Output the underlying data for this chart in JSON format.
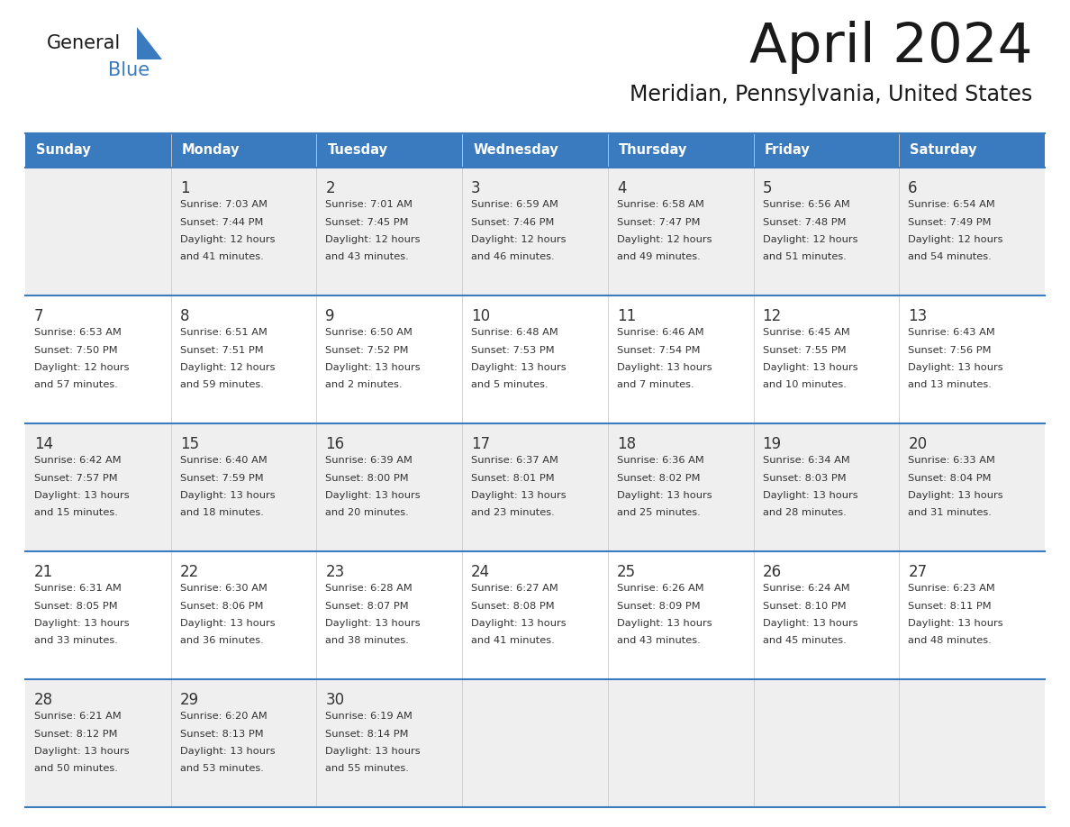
{
  "title": "April 2024",
  "subtitle": "Meridian, Pennsylvania, United States",
  "header_bg": "#3a7abf",
  "header_text": "#ffffff",
  "row_bg_odd": "#efefef",
  "row_bg_even": "#ffffff",
  "separator_color": "#3a7abf",
  "text_color": "#333333",
  "days_of_week": [
    "Sunday",
    "Monday",
    "Tuesday",
    "Wednesday",
    "Thursday",
    "Friday",
    "Saturday"
  ],
  "weeks": [
    [
      {
        "day": "",
        "info": ""
      },
      {
        "day": "1",
        "info": "Sunrise: 7:03 AM\nSunset: 7:44 PM\nDaylight: 12 hours\nand 41 minutes."
      },
      {
        "day": "2",
        "info": "Sunrise: 7:01 AM\nSunset: 7:45 PM\nDaylight: 12 hours\nand 43 minutes."
      },
      {
        "day": "3",
        "info": "Sunrise: 6:59 AM\nSunset: 7:46 PM\nDaylight: 12 hours\nand 46 minutes."
      },
      {
        "day": "4",
        "info": "Sunrise: 6:58 AM\nSunset: 7:47 PM\nDaylight: 12 hours\nand 49 minutes."
      },
      {
        "day": "5",
        "info": "Sunrise: 6:56 AM\nSunset: 7:48 PM\nDaylight: 12 hours\nand 51 minutes."
      },
      {
        "day": "6",
        "info": "Sunrise: 6:54 AM\nSunset: 7:49 PM\nDaylight: 12 hours\nand 54 minutes."
      }
    ],
    [
      {
        "day": "7",
        "info": "Sunrise: 6:53 AM\nSunset: 7:50 PM\nDaylight: 12 hours\nand 57 minutes."
      },
      {
        "day": "8",
        "info": "Sunrise: 6:51 AM\nSunset: 7:51 PM\nDaylight: 12 hours\nand 59 minutes."
      },
      {
        "day": "9",
        "info": "Sunrise: 6:50 AM\nSunset: 7:52 PM\nDaylight: 13 hours\nand 2 minutes."
      },
      {
        "day": "10",
        "info": "Sunrise: 6:48 AM\nSunset: 7:53 PM\nDaylight: 13 hours\nand 5 minutes."
      },
      {
        "day": "11",
        "info": "Sunrise: 6:46 AM\nSunset: 7:54 PM\nDaylight: 13 hours\nand 7 minutes."
      },
      {
        "day": "12",
        "info": "Sunrise: 6:45 AM\nSunset: 7:55 PM\nDaylight: 13 hours\nand 10 minutes."
      },
      {
        "day": "13",
        "info": "Sunrise: 6:43 AM\nSunset: 7:56 PM\nDaylight: 13 hours\nand 13 minutes."
      }
    ],
    [
      {
        "day": "14",
        "info": "Sunrise: 6:42 AM\nSunset: 7:57 PM\nDaylight: 13 hours\nand 15 minutes."
      },
      {
        "day": "15",
        "info": "Sunrise: 6:40 AM\nSunset: 7:59 PM\nDaylight: 13 hours\nand 18 minutes."
      },
      {
        "day": "16",
        "info": "Sunrise: 6:39 AM\nSunset: 8:00 PM\nDaylight: 13 hours\nand 20 minutes."
      },
      {
        "day": "17",
        "info": "Sunrise: 6:37 AM\nSunset: 8:01 PM\nDaylight: 13 hours\nand 23 minutes."
      },
      {
        "day": "18",
        "info": "Sunrise: 6:36 AM\nSunset: 8:02 PM\nDaylight: 13 hours\nand 25 minutes."
      },
      {
        "day": "19",
        "info": "Sunrise: 6:34 AM\nSunset: 8:03 PM\nDaylight: 13 hours\nand 28 minutes."
      },
      {
        "day": "20",
        "info": "Sunrise: 6:33 AM\nSunset: 8:04 PM\nDaylight: 13 hours\nand 31 minutes."
      }
    ],
    [
      {
        "day": "21",
        "info": "Sunrise: 6:31 AM\nSunset: 8:05 PM\nDaylight: 13 hours\nand 33 minutes."
      },
      {
        "day": "22",
        "info": "Sunrise: 6:30 AM\nSunset: 8:06 PM\nDaylight: 13 hours\nand 36 minutes."
      },
      {
        "day": "23",
        "info": "Sunrise: 6:28 AM\nSunset: 8:07 PM\nDaylight: 13 hours\nand 38 minutes."
      },
      {
        "day": "24",
        "info": "Sunrise: 6:27 AM\nSunset: 8:08 PM\nDaylight: 13 hours\nand 41 minutes."
      },
      {
        "day": "25",
        "info": "Sunrise: 6:26 AM\nSunset: 8:09 PM\nDaylight: 13 hours\nand 43 minutes."
      },
      {
        "day": "26",
        "info": "Sunrise: 6:24 AM\nSunset: 8:10 PM\nDaylight: 13 hours\nand 45 minutes."
      },
      {
        "day": "27",
        "info": "Sunrise: 6:23 AM\nSunset: 8:11 PM\nDaylight: 13 hours\nand 48 minutes."
      }
    ],
    [
      {
        "day": "28",
        "info": "Sunrise: 6:21 AM\nSunset: 8:12 PM\nDaylight: 13 hours\nand 50 minutes."
      },
      {
        "day": "29",
        "info": "Sunrise: 6:20 AM\nSunset: 8:13 PM\nDaylight: 13 hours\nand 53 minutes."
      },
      {
        "day": "30",
        "info": "Sunrise: 6:19 AM\nSunset: 8:14 PM\nDaylight: 13 hours\nand 55 minutes."
      },
      {
        "day": "",
        "info": ""
      },
      {
        "day": "",
        "info": ""
      },
      {
        "day": "",
        "info": ""
      },
      {
        "day": "",
        "info": ""
      }
    ]
  ],
  "logo_triangle_color": "#3a7abf",
  "logo_general_color": "#1a1a1a",
  "logo_blue_color": "#3a7abf",
  "title_color": "#1a1a1a",
  "subtitle_color": "#1a1a1a"
}
